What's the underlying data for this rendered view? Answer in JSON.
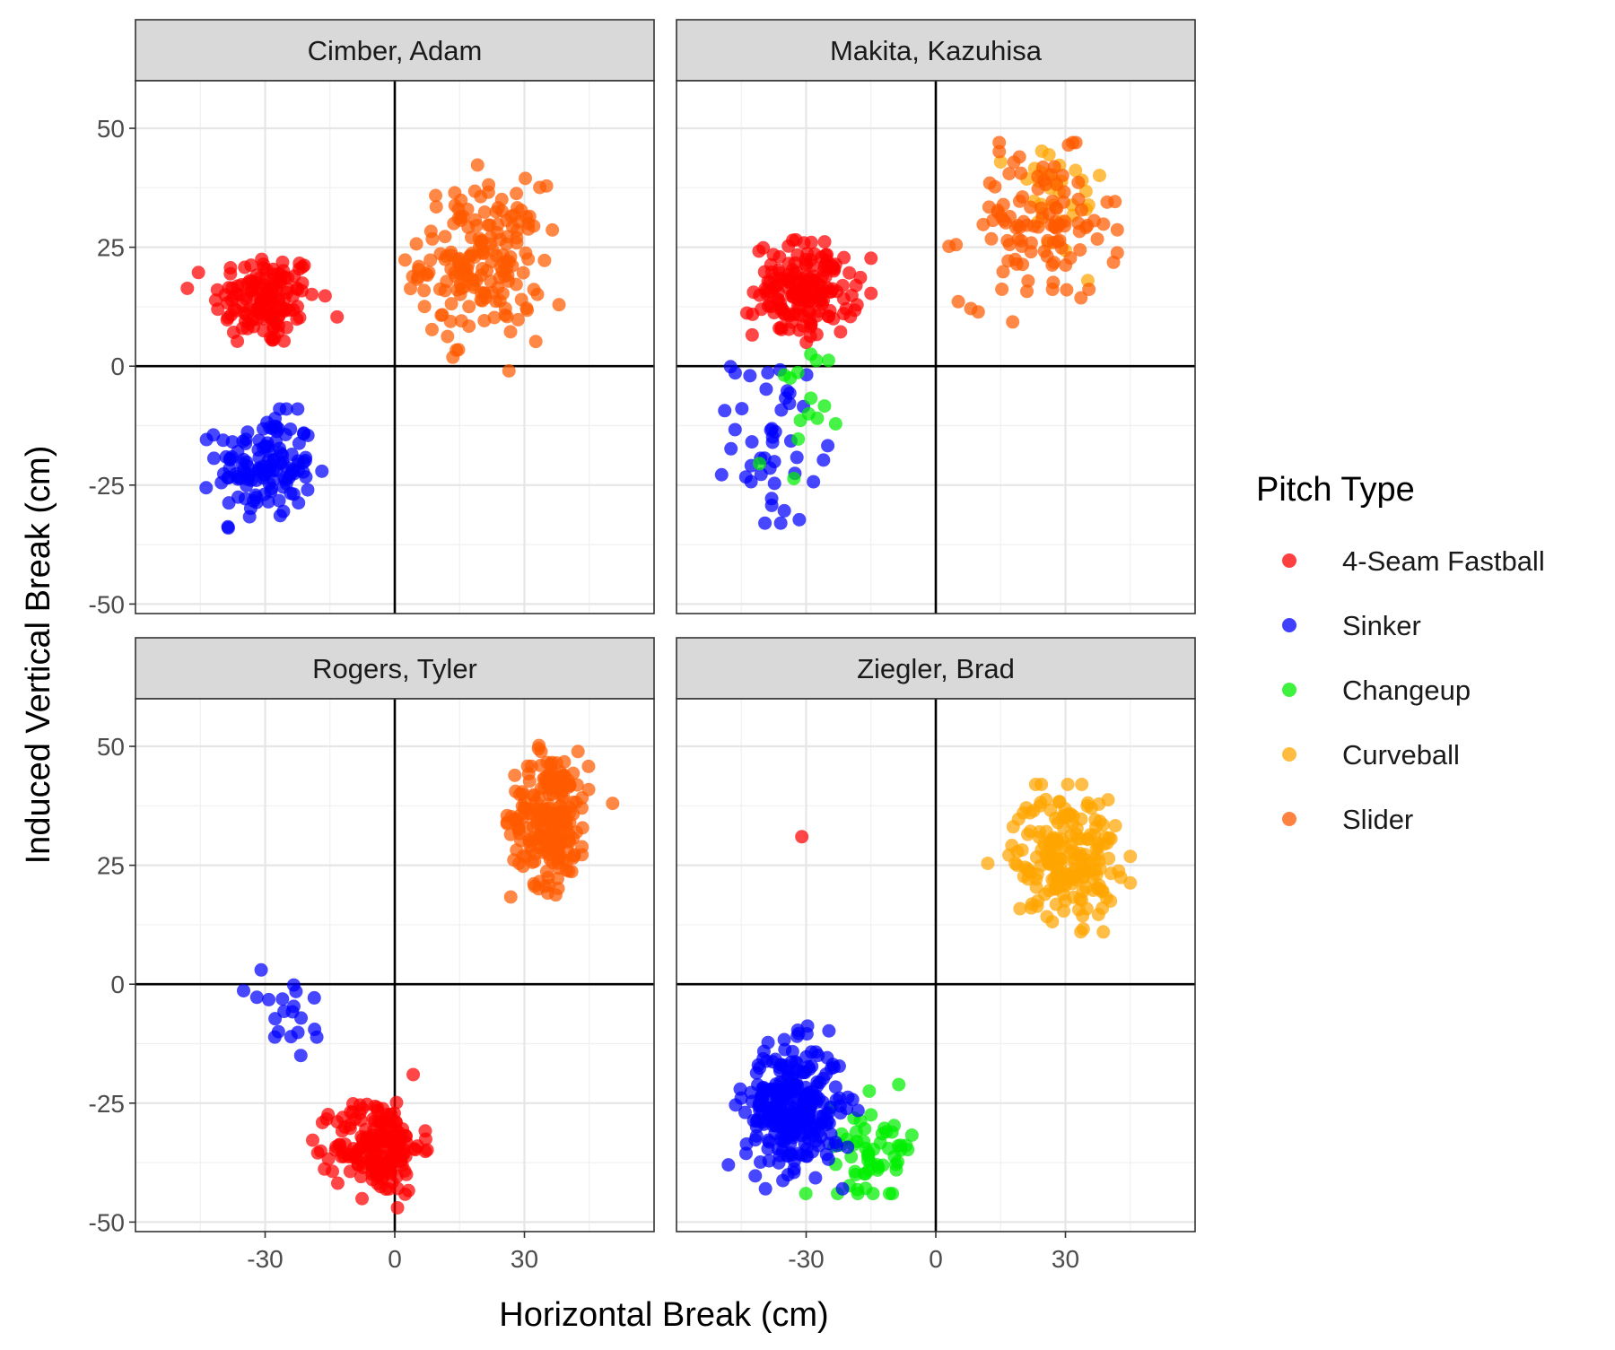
{
  "chart_data": {
    "type": "scatter",
    "facet": "pitcher",
    "xlabel": "Horizontal Break (cm)",
    "ylabel": "Induced Vertical Break (cm)",
    "xlim": [
      -60,
      60
    ],
    "ylim": [
      -52,
      60
    ],
    "xticks": [
      -30,
      0,
      30
    ],
    "yticks": [
      -50,
      -25,
      0,
      25,
      50
    ],
    "tick_labels_x": [
      "-30",
      "0",
      "30"
    ],
    "tick_labels_y": [
      "-50",
      "-25",
      "0",
      "25",
      "50"
    ],
    "grid": true,
    "reference_lines": {
      "x": 0,
      "y": 0
    },
    "legend": {
      "title": "Pitch Type",
      "position": "right",
      "entries": [
        {
          "name": "4-Seam Fastball",
          "color": "#ff0000"
        },
        {
          "name": "Sinker",
          "color": "#0000ff"
        },
        {
          "name": "Changeup",
          "color": "#00ee00"
        },
        {
          "name": "Curveball",
          "color": "#ffa500"
        },
        {
          "name": "Slider",
          "color": "#ff5a00"
        }
      ]
    },
    "panels": [
      {
        "title": "Cimber, Adam",
        "clusters": [
          {
            "pitch": "4-Seam Fastball",
            "n": 140,
            "cx": -30,
            "cy": 14,
            "sx": 6,
            "sy": 5,
            "range_x": [
              -48,
              -10
            ],
            "range_y": [
              -3,
              24
            ]
          },
          {
            "pitch": "Sinker",
            "n": 130,
            "cx": -30,
            "cy": -21,
            "sx": 5.5,
            "sy": 5.5,
            "range_x": [
              -48,
              -12
            ],
            "range_y": [
              -34,
              -9
            ]
          },
          {
            "pitch": "Slider",
            "n": 180,
            "cx": 20,
            "cy": 22,
            "sx": 7,
            "sy": 8,
            "range_x": [
              0,
              38
            ],
            "range_y": [
              -5,
              43
            ]
          }
        ]
      },
      {
        "title": "Makita, Kazuhisa",
        "clusters": [
          {
            "pitch": "4-Seam Fastball",
            "n": 170,
            "cx": -30,
            "cy": 16,
            "sx": 6,
            "sy": 5,
            "range_x": [
              -55,
              -15
            ],
            "range_y": [
              5,
              31
            ]
          },
          {
            "pitch": "Sinker",
            "n": 45,
            "cx": -37,
            "cy": -15,
            "sx": 5,
            "sy": 9,
            "range_x": [
              -50,
              -25
            ],
            "range_y": [
              -33,
              2
            ]
          },
          {
            "pitch": "Changeup",
            "n": 15,
            "cx": -33,
            "cy": -13,
            "sx": 4,
            "sy": 9,
            "range_x": [
              -45,
              -22
            ],
            "range_y": [
              -31,
              6
            ]
          },
          {
            "pitch": "Curveball",
            "n": 30,
            "cx": 27,
            "cy": 35,
            "sx": 6,
            "sy": 7,
            "range_x": [
              15,
              41
            ],
            "range_y": [
              18,
              49
            ]
          },
          {
            "pitch": "Slider",
            "n": 110,
            "cx": 24,
            "cy": 29,
            "sx": 9,
            "sy": 8,
            "range_x": [
              -8,
              42
            ],
            "range_y": [
              3,
              47
            ]
          }
        ]
      },
      {
        "title": "Rogers, Tyler",
        "clusters": [
          {
            "pitch": "4-Seam Fastball",
            "n": 190,
            "cx": -4,
            "cy": -34,
            "sx": 5,
            "sy": 5,
            "range_x": [
              -19,
              9
            ],
            "range_y": [
              -47,
              -19
            ]
          },
          {
            "pitch": "Sinker",
            "n": 20,
            "cx": -25,
            "cy": -7,
            "sx": 5,
            "sy": 5,
            "range_x": [
              -39,
              -15
            ],
            "range_y": [
              -16,
              3
            ]
          },
          {
            "pitch": "Slider",
            "n": 220,
            "cx": 36,
            "cy": 35,
            "sx": 4.5,
            "sy": 7,
            "range_x": [
              26,
              55
            ],
            "range_y": [
              18,
              55
            ]
          }
        ]
      },
      {
        "title": "Ziegler, Brad",
        "clusters": [
          {
            "pitch": "4-Seam Fastball",
            "n": 1,
            "points": [
              [
                -31,
                31
              ]
            ]
          },
          {
            "pitch": "Changeup",
            "n": 60,
            "cx": -14,
            "cy": -34,
            "sx": 5,
            "sy": 5,
            "range_x": [
              -42,
              1
            ],
            "range_y": [
              -44,
              2
            ]
          },
          {
            "pitch": "Sinker",
            "n": 300,
            "cx": -33,
            "cy": -26,
            "sx": 5.5,
            "sy": 6.5,
            "range_x": [
              -48,
              -18
            ],
            "range_y": [
              -43,
              1
            ]
          },
          {
            "pitch": "Curveball",
            "n": 200,
            "cx": 30,
            "cy": 27,
            "sx": 6,
            "sy": 6.5,
            "range_x": [
              3,
              45
            ],
            "range_y": [
              4,
              42
            ]
          }
        ]
      }
    ]
  }
}
